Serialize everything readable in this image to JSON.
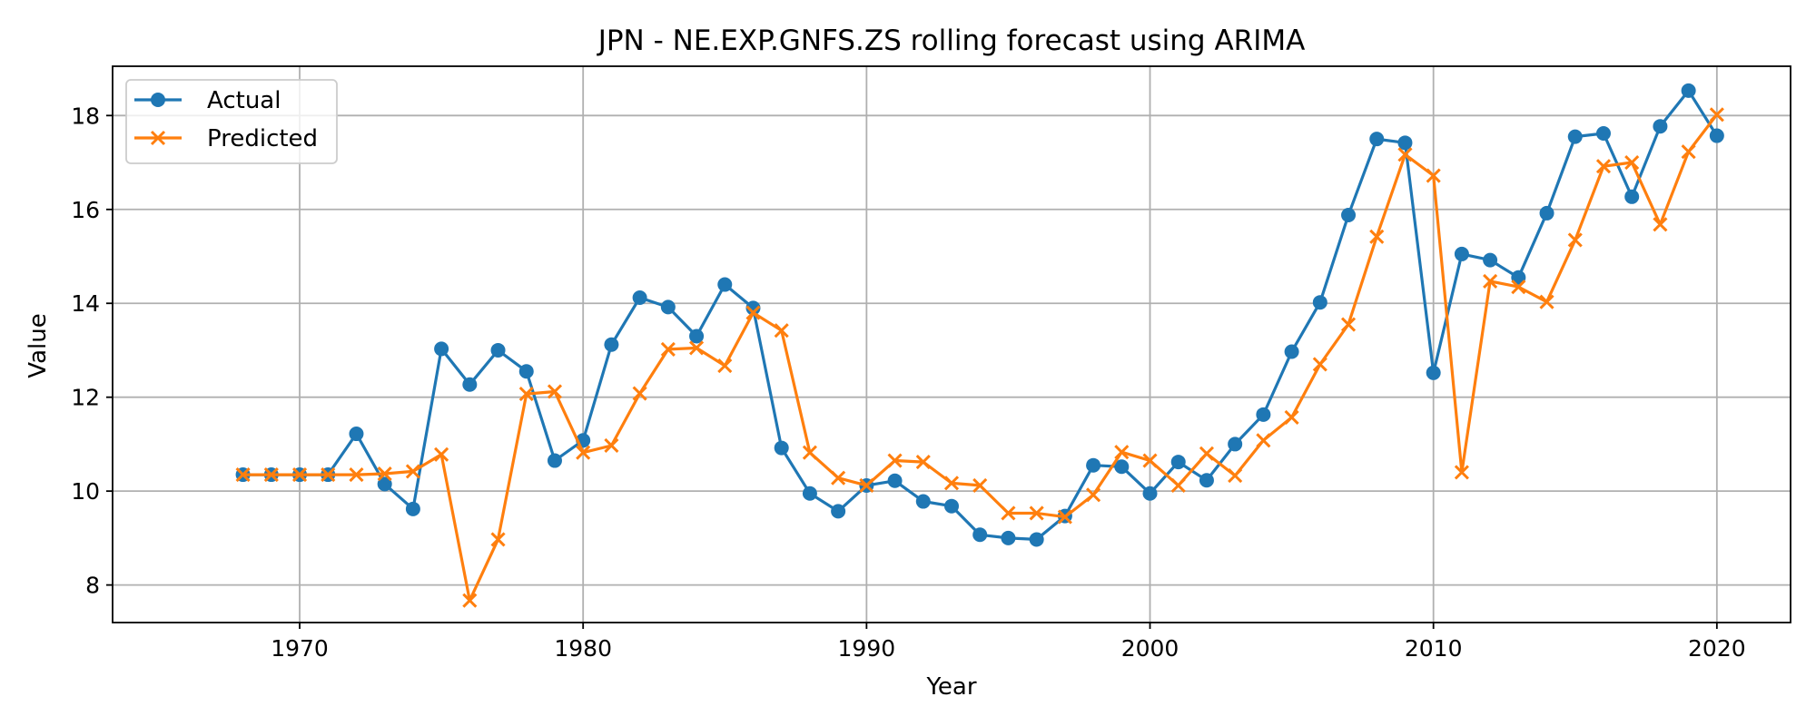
{
  "chart_data": {
    "type": "line",
    "title": "JPN - NE.EXP.GNFS.ZS rolling forecast using ARIMA",
    "xlabel": "Year",
    "ylabel": "Value",
    "xlim": [
      1963.4,
      2022.6
    ],
    "ylim": [
      7.2,
      19.05
    ],
    "xticks": [
      1970,
      1980,
      1990,
      2000,
      2010,
      2020
    ],
    "yticks": [
      8,
      10,
      12,
      14,
      16,
      18
    ],
    "grid": true,
    "legend_position": "top-left",
    "x": [
      1968,
      1969,
      1970,
      1971,
      1972,
      1973,
      1974,
      1975,
      1976,
      1977,
      1978,
      1979,
      1980,
      1981,
      1982,
      1983,
      1984,
      1985,
      1986,
      1987,
      1988,
      1989,
      1990,
      1991,
      1992,
      1993,
      1994,
      1995,
      1996,
      1997,
      1998,
      1999,
      2000,
      2001,
      2002,
      2003,
      2004,
      2005,
      2006,
      2007,
      2008,
      2009,
      2010,
      2011,
      2012,
      2013,
      2014,
      2015,
      2016,
      2017,
      2018,
      2019,
      2020
    ],
    "series": [
      {
        "name": "Actual",
        "color": "#1f77b4",
        "marker": "circle",
        "values": [
          10.35,
          10.35,
          10.35,
          10.35,
          11.22,
          10.15,
          9.62,
          13.03,
          12.27,
          13.0,
          12.55,
          10.65,
          11.08,
          13.12,
          14.12,
          13.92,
          13.3,
          14.4,
          13.9,
          10.92,
          9.95,
          9.57,
          10.12,
          10.22,
          9.78,
          9.68,
          9.07,
          9.0,
          8.97,
          9.47,
          10.55,
          10.52,
          9.95,
          10.62,
          10.23,
          11.0,
          11.63,
          12.97,
          14.02,
          15.88,
          17.5,
          17.42,
          12.52,
          15.05,
          14.92,
          14.55,
          15.92,
          17.55,
          17.62,
          16.27,
          17.77,
          18.53,
          17.57
        ]
      },
      {
        "name": "Predicted",
        "color": "#ff7f0e",
        "marker": "x",
        "values": [
          10.35,
          10.35,
          10.35,
          10.35,
          10.35,
          10.37,
          10.42,
          10.78,
          7.67,
          8.97,
          12.07,
          12.12,
          10.82,
          10.97,
          12.08,
          13.02,
          13.05,
          12.67,
          13.8,
          13.42,
          10.82,
          10.28,
          10.12,
          10.65,
          10.62,
          10.17,
          10.12,
          9.53,
          9.53,
          9.45,
          9.92,
          10.83,
          10.65,
          10.12,
          10.8,
          10.33,
          11.08,
          11.57,
          12.7,
          13.55,
          15.42,
          17.17,
          16.72,
          10.4,
          14.47,
          14.35,
          14.03,
          15.35,
          16.92,
          17.0,
          15.68,
          17.23,
          18.02
        ]
      }
    ]
  }
}
